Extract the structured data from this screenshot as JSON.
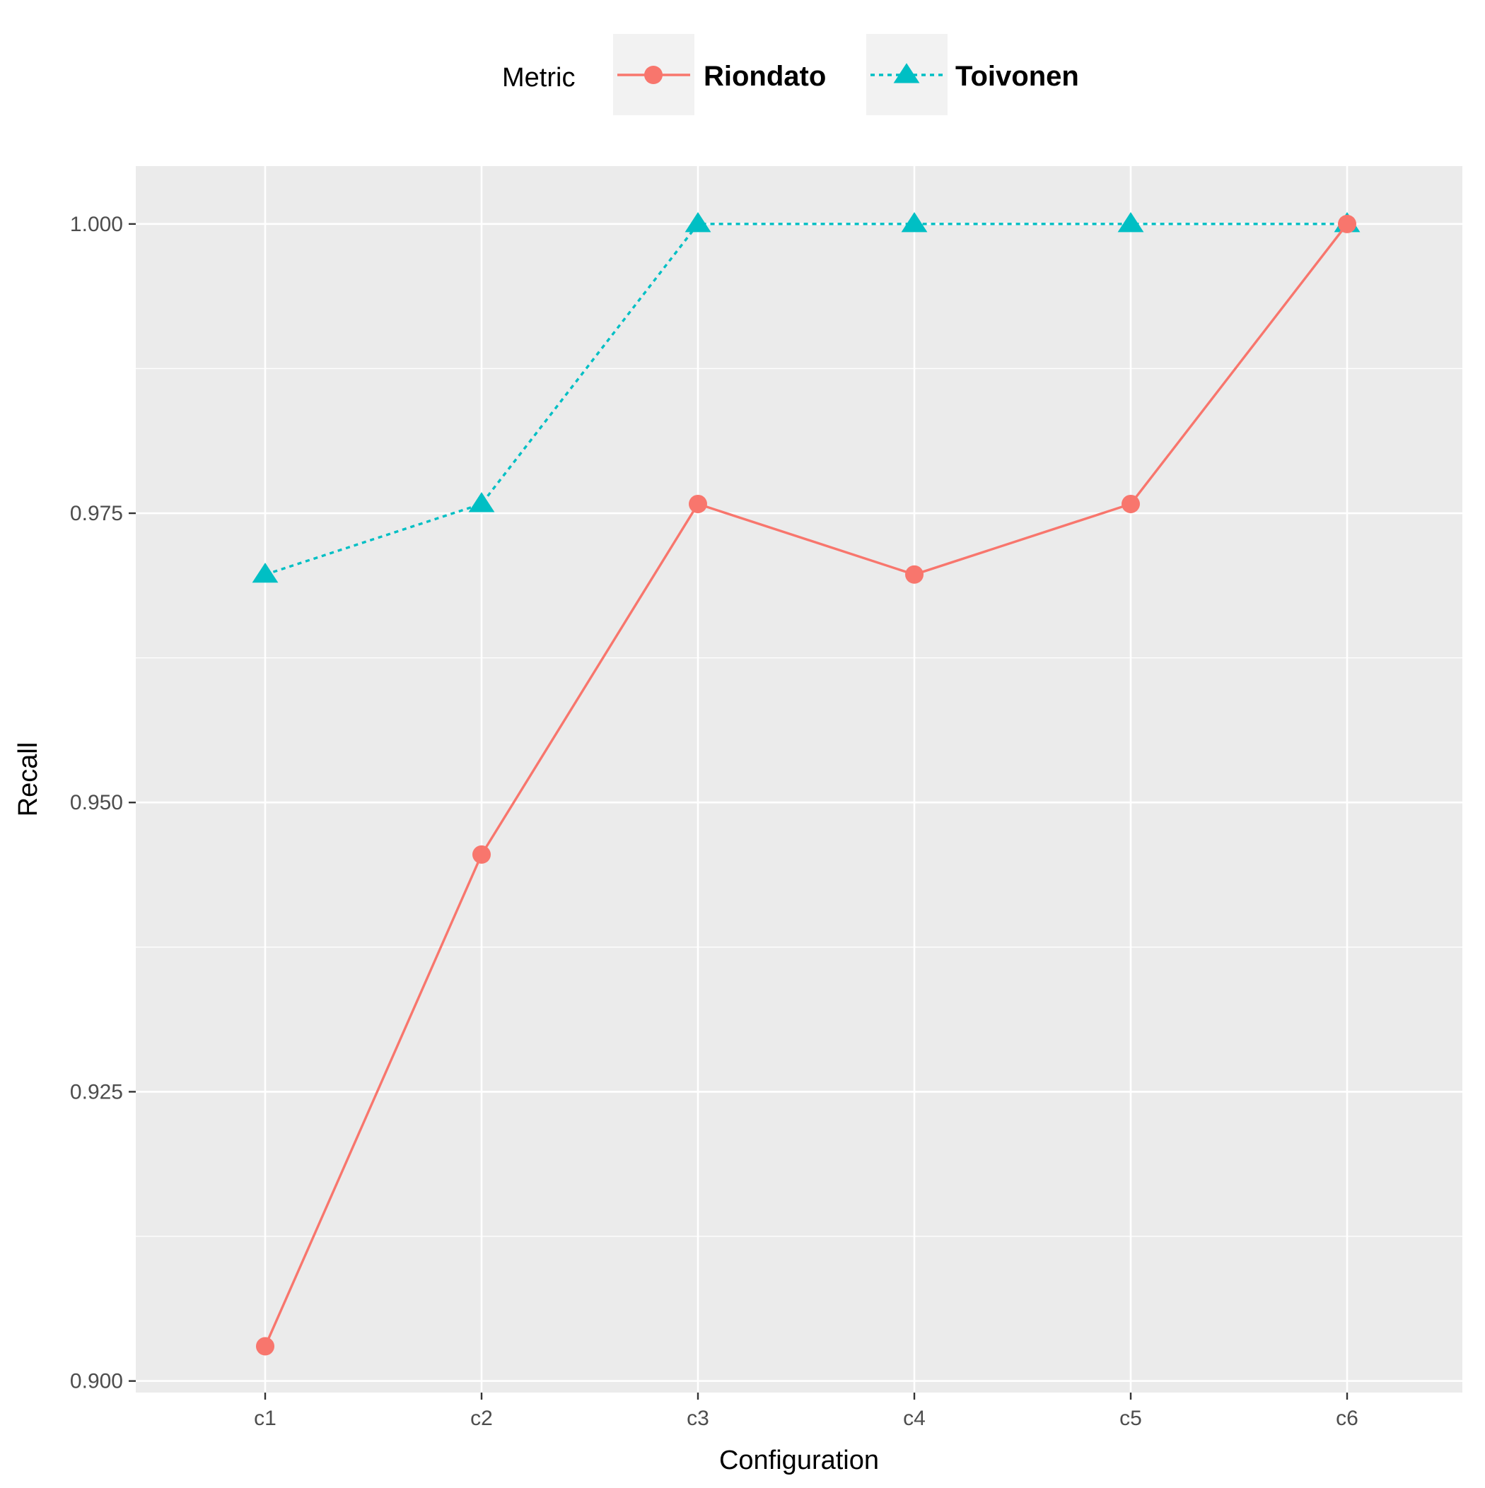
{
  "chart_data": {
    "type": "line",
    "categories": [
      "c1",
      "c2",
      "c3",
      "c4",
      "c5",
      "c6"
    ],
    "series": [
      {
        "name": "Riondato",
        "values": [
          0.903,
          0.9455,
          0.9758,
          0.9697,
          0.9758,
          1.0
        ],
        "color": "#F8766D",
        "marker": "circle",
        "line_style": "solid"
      },
      {
        "name": "Toivonen",
        "values": [
          0.9697,
          0.9758,
          1.0,
          1.0,
          1.0,
          1.0
        ],
        "color": "#00BFC4",
        "marker": "triangle",
        "line_style": "dotted"
      }
    ],
    "title": "",
    "xlabel": "Configuration",
    "ylabel": "Recall",
    "ylim": [
      0.899,
      1.005
    ],
    "yticks": [
      "0.900",
      "0.925",
      "0.950",
      "0.975",
      "1.000"
    ],
    "grid": true,
    "legend": {
      "title": "Metric",
      "position": "top"
    },
    "panel_color": "#EBEBEB"
  }
}
